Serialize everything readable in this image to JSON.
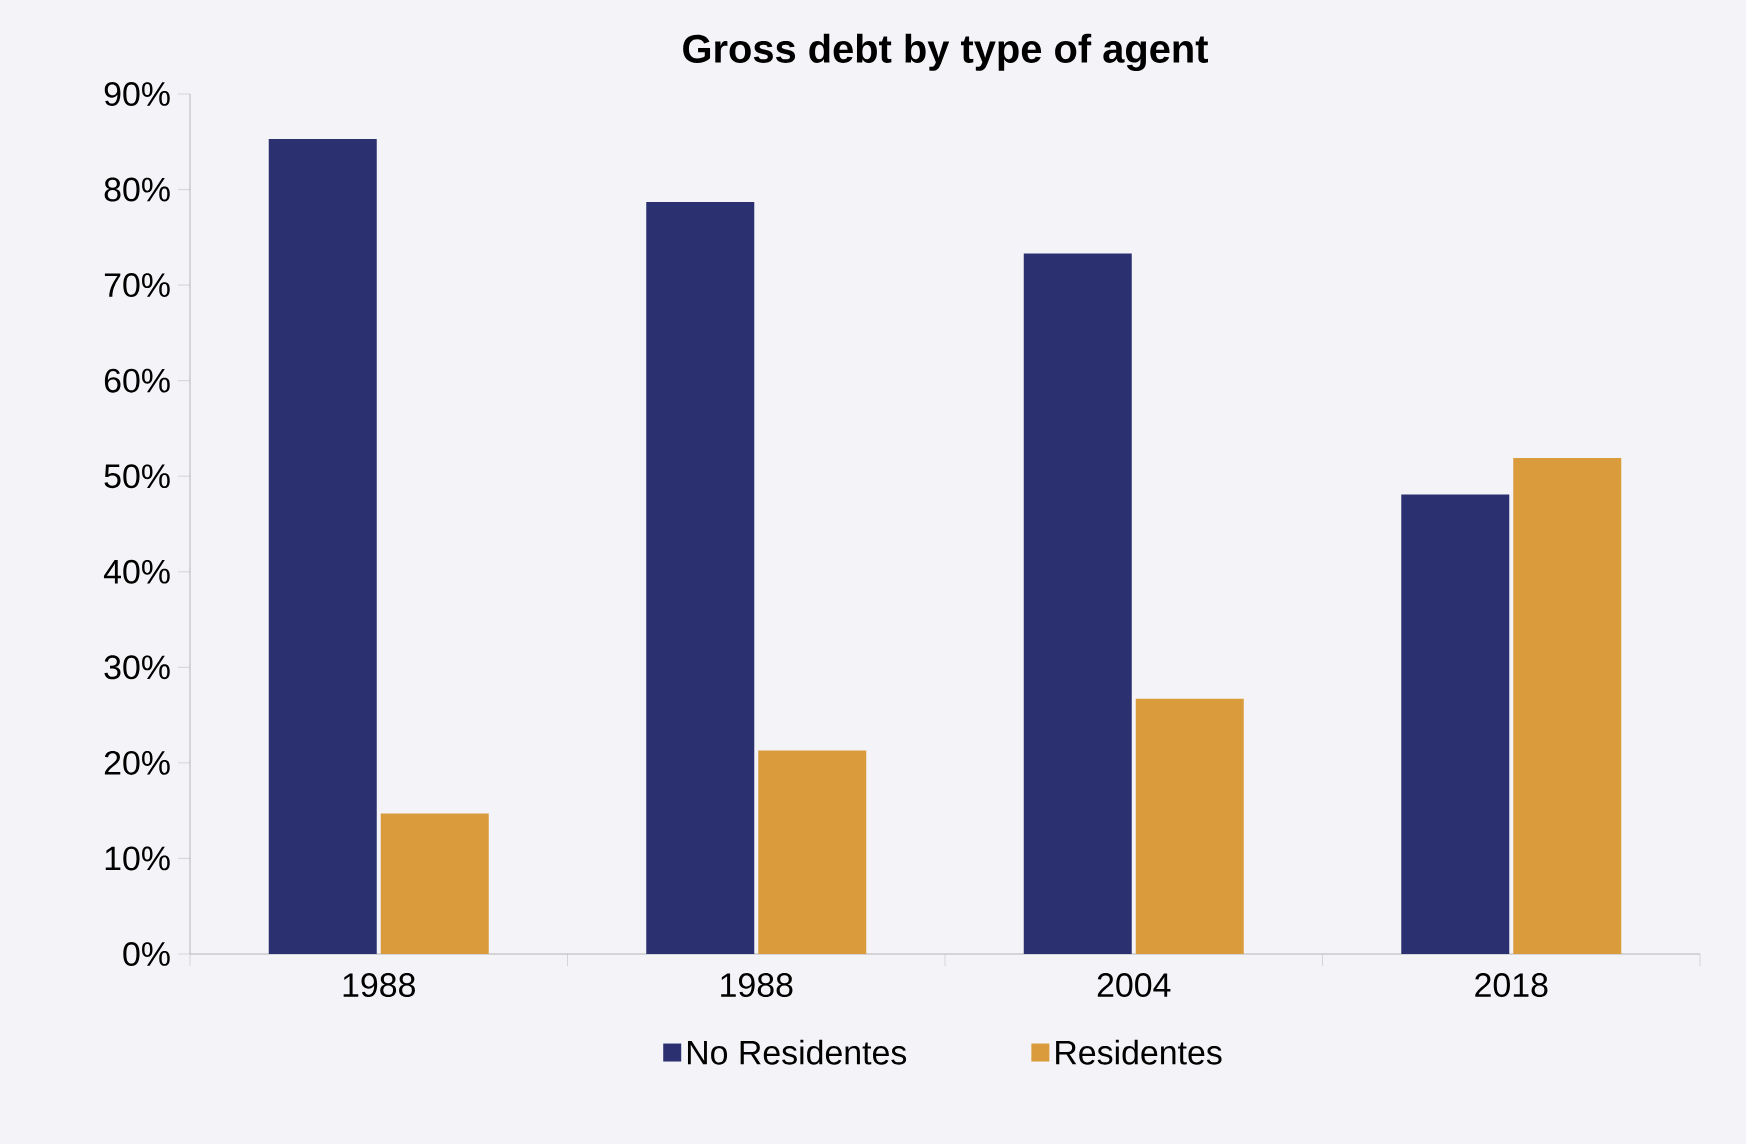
{
  "chart_data": {
    "type": "bar",
    "title": "Gross debt by type of agent",
    "categories": [
      "1988",
      "1988",
      "2004",
      "2018"
    ],
    "series": [
      {
        "name": "No Residentes",
        "color": "#2b3170",
        "values": [
          85.3,
          78.7,
          73.3,
          48.1
        ]
      },
      {
        "name": "Residentes",
        "color": "#d99b3c",
        "values": [
          14.7,
          21.3,
          26.7,
          51.9
        ]
      }
    ],
    "ylim": [
      0,
      90
    ],
    "yticks": [
      {
        "value": 0,
        "label": "0%"
      },
      {
        "value": 10,
        "label": "10%"
      },
      {
        "value": 20,
        "label": "20%"
      },
      {
        "value": 30,
        "label": "30%"
      },
      {
        "value": 40,
        "label": "40%"
      },
      {
        "value": 50,
        "label": "50%"
      },
      {
        "value": 60,
        "label": "60%"
      },
      {
        "value": 70,
        "label": "70%"
      },
      {
        "value": 80,
        "label": "80%"
      },
      {
        "value": 90,
        "label": "90%"
      }
    ],
    "grid": false,
    "legend": "bottom"
  }
}
